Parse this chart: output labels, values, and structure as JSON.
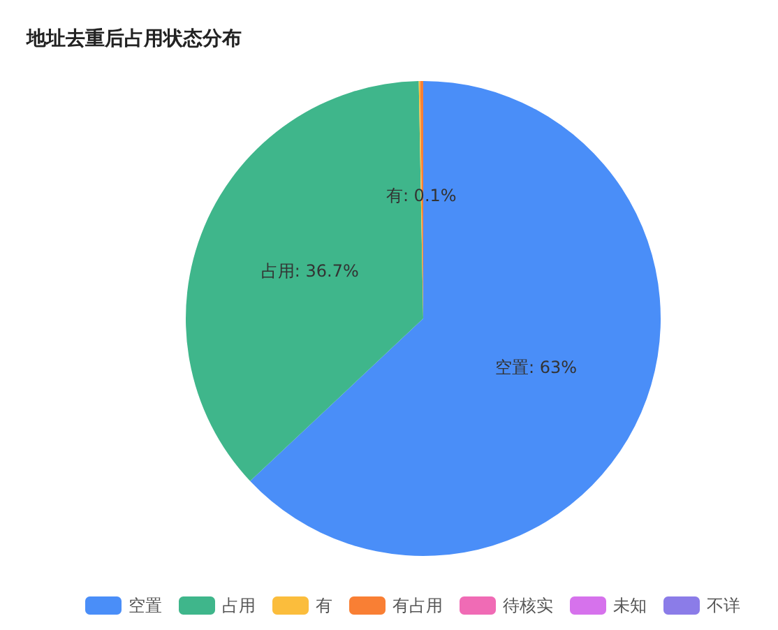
{
  "chart_data": {
    "type": "pie",
    "title": "地址去重后占用状态分布",
    "categories": [
      "空置",
      "占用",
      "有",
      "有占用",
      "待核实",
      "未知",
      "不详"
    ],
    "values": [
      63,
      36.7,
      0.1,
      0.2,
      0,
      0,
      0
    ],
    "colors": [
      "#4a8ef8",
      "#3fb68b",
      "#fbbd3c",
      "#f97f34",
      "#f06bb5",
      "#d672ec",
      "#8b7ce8"
    ],
    "value_labels": [
      "空置: 63%",
      "占用: 36.7%",
      "有: 0.1%",
      null,
      null,
      null,
      null
    ],
    "legend": "bottom right"
  }
}
